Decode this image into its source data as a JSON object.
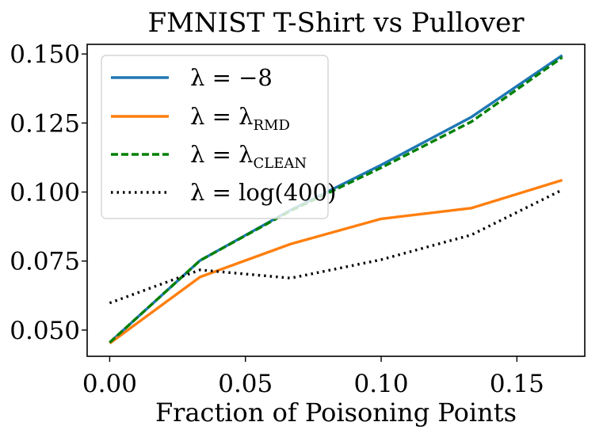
{
  "chart_data": {
    "type": "line",
    "title": "FMNIST T-Shirt vs Pullover",
    "xlabel": "Fraction of Poisoning Points",
    "ylabel": "",
    "x": [
      0.0,
      0.0333,
      0.0667,
      0.1,
      0.1333,
      0.1667
    ],
    "xlim": [
      -0.0083,
      0.175
    ],
    "ylim": [
      0.0405,
      0.1535
    ],
    "xticks": [
      0.0,
      0.05,
      0.1,
      0.15
    ],
    "xtick_labels": [
      "0.00",
      "0.05",
      "0.10",
      "0.15"
    ],
    "yticks": [
      0.05,
      0.075,
      0.1,
      0.125,
      0.15
    ],
    "ytick_labels": [
      "0.050",
      "0.075",
      "0.100",
      "0.125",
      "0.150"
    ],
    "legend_position": "upper-left",
    "series": [
      {
        "name": "λ = −8",
        "label_main": "λ = −8",
        "label_sub": "",
        "color": "#1f77b4",
        "style": "solid",
        "values": [
          0.0455,
          0.0752,
          0.0935,
          0.1098,
          0.1272,
          0.1495
        ]
      },
      {
        "name": "λ = λ_RMD",
        "label_main": "λ = λ",
        "label_sub": "RMD",
        "color": "#ff7f0e",
        "style": "solid",
        "values": [
          0.0452,
          0.0692,
          0.0812,
          0.0903,
          0.0942,
          0.1043
        ]
      },
      {
        "name": "λ = λ_CLEAN",
        "label_main": "λ = λ",
        "label_sub": "CLEAN",
        "color": "#008000",
        "style": "dashed",
        "values": [
          0.0455,
          0.0752,
          0.0932,
          0.1088,
          0.1255,
          0.1488
        ]
      },
      {
        "name": "λ = log(400)",
        "label_main": "λ = log(400)",
        "label_sub": "",
        "color": "#000000",
        "style": "dotted",
        "values": [
          0.0598,
          0.0718,
          0.0688,
          0.0755,
          0.0845,
          0.1008
        ]
      }
    ]
  }
}
